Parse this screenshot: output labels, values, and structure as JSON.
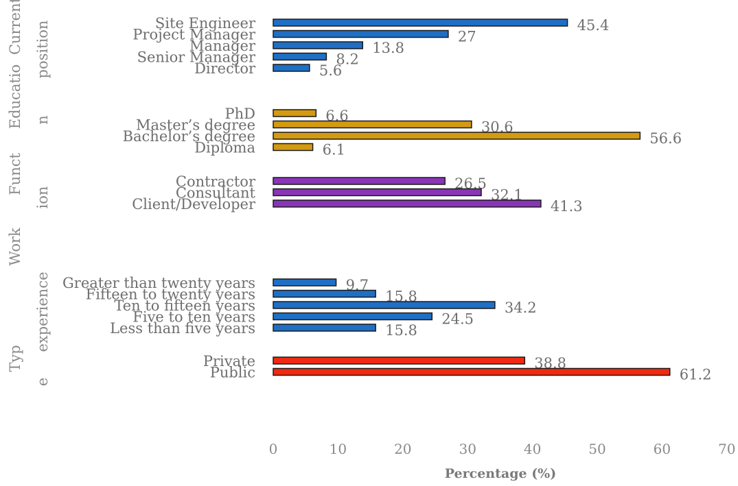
{
  "chart_data": {
    "type": "bar",
    "orientation": "horizontal",
    "xlabel": "Percentage (%)",
    "xlim": [
      0,
      70
    ],
    "xticks": [
      0,
      10,
      20,
      30,
      40,
      50,
      60,
      70
    ],
    "grid": false,
    "legend": "none",
    "groups": [
      {
        "name_lines": [
          "Current",
          "position"
        ],
        "color": "#1f6fc5",
        "categories": [
          "Site Engineer",
          "Project Manager",
          "Manager",
          "Senior Manager",
          "Director"
        ],
        "values": [
          45.4,
          27,
          13.8,
          8.2,
          5.6
        ],
        "value_labels": [
          "45.4",
          "27",
          "13.8",
          "8.2",
          "5.6"
        ]
      },
      {
        "name_lines": [
          "Educatio",
          "n"
        ],
        "color": "#d49a12",
        "categories": [
          "PhD",
          "Master’s degree",
          "Bachelor’s degree",
          "Diploma"
        ],
        "values": [
          6.6,
          30.6,
          56.6,
          6.1
        ],
        "value_labels": [
          "6.6",
          "30.6",
          "56.6",
          "6.1"
        ]
      },
      {
        "name_lines": [
          "Funct",
          "ion"
        ],
        "color": "#8a35b8",
        "categories": [
          "Contractor",
          "Consultant",
          "Client/Developer"
        ],
        "values": [
          26.5,
          32.1,
          41.3
        ],
        "value_labels": [
          "26.5",
          "32.1",
          "41.3"
        ]
      },
      {
        "name_lines": [
          "Work",
          "experience"
        ],
        "color": "#1f6fc5",
        "categories": [
          "Greater than twenty years",
          "Fifteen to twenty years",
          "Ten to fifteen years",
          "Five to ten years",
          "Less than five years"
        ],
        "values": [
          9.7,
          15.8,
          34.2,
          24.5,
          15.8
        ],
        "value_labels": [
          "9.7",
          "15.8",
          "34.2",
          "24.5",
          "15.8"
        ]
      },
      {
        "name_lines": [
          "Typ",
          "e"
        ],
        "color": "#f02a10",
        "categories": [
          "Private",
          "Public"
        ],
        "values": [
          38.8,
          61.2
        ],
        "value_labels": [
          "38.8",
          "61.2"
        ]
      }
    ]
  }
}
